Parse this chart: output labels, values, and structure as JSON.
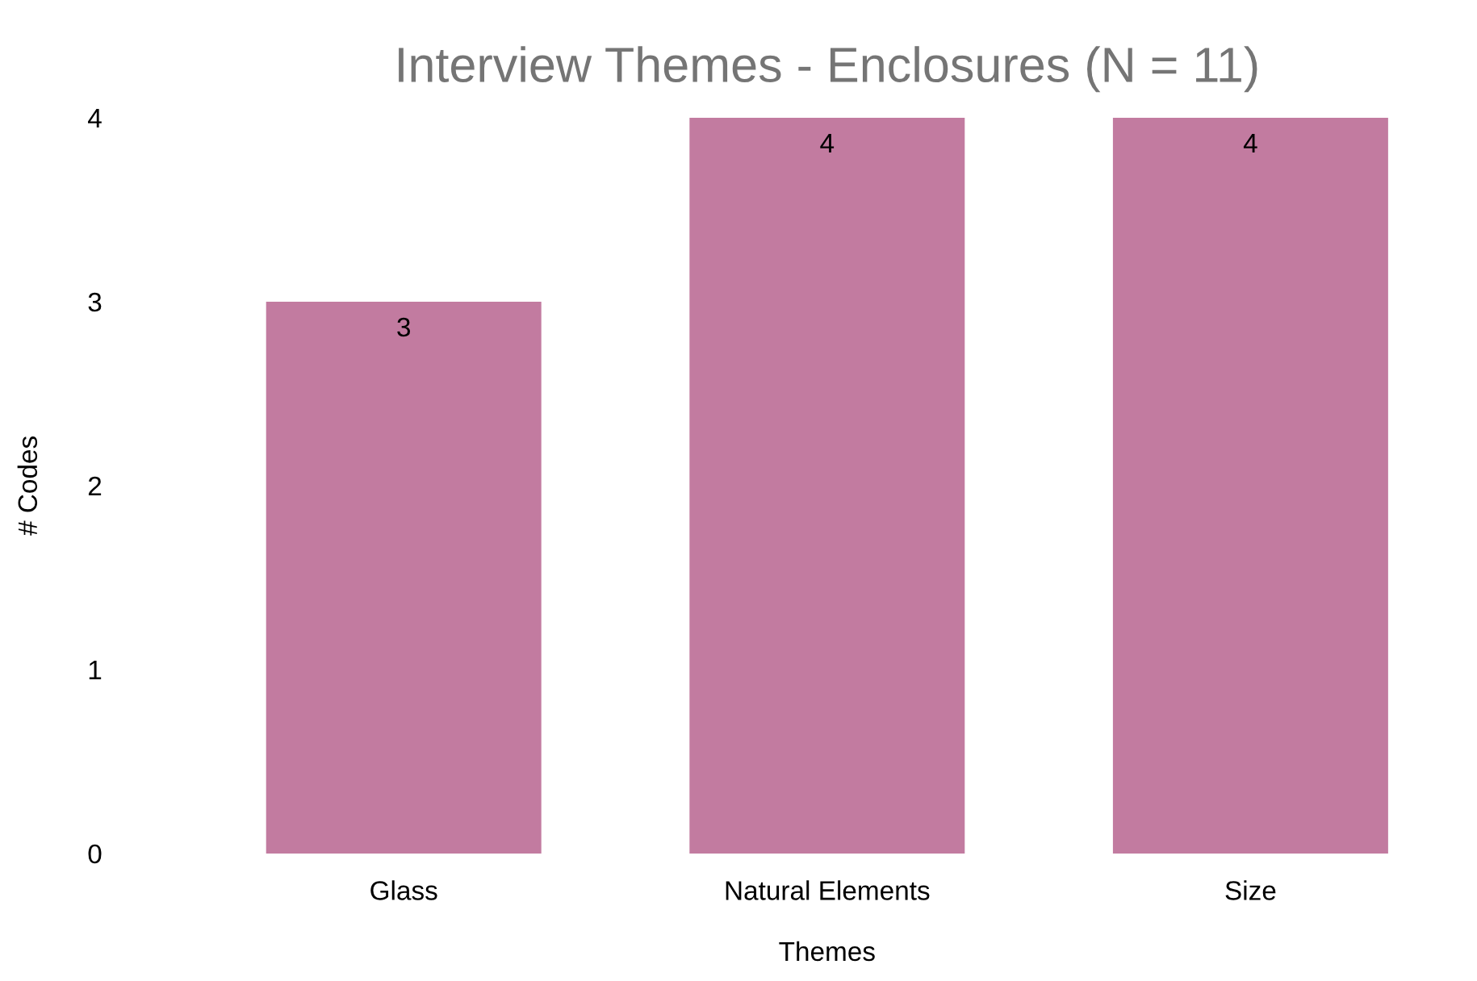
{
  "chart_data": {
    "type": "bar",
    "title": "Interview Themes - Enclosures (N = 11)",
    "xlabel": "Themes",
    "ylabel": "# Codes",
    "categories": [
      "Glass",
      "Natural Elements",
      "Size"
    ],
    "values": [
      3,
      4,
      4
    ],
    "color": "#c27ba0",
    "ylim": [
      0,
      4
    ],
    "yticks": [
      0,
      1,
      2,
      3,
      4
    ],
    "grid": false,
    "data_labels": true
  }
}
